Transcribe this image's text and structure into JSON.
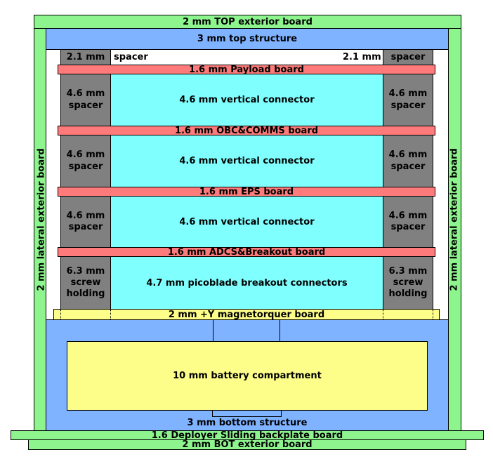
{
  "top_exterior": "2 mm TOP exterior board",
  "top_structure": "3 mm top structure",
  "lateral_left": "2 mm lateral exterior board",
  "lateral_right": "2 mm lateral exterior board",
  "spacer_top_left_mm": "2.1 mm",
  "spacer_top_left_word": "spacer",
  "spacer_top_right_mm": "2.1 mm",
  "spacer_top_right_word": "spacer",
  "payload_board": "1.6 mm Payload board",
  "obc_board": "1.6 mm OBC&COMMS board",
  "eps_board": "1.6 mm EPS board",
  "adcs_board": "1.6 mm ADCS&Breakout board",
  "connector_1": "4.6 mm vertical connector",
  "connector_2": "4.6 mm vertical connector",
  "connector_3": "4.6 mm vertical connector",
  "picoblade": "4.7 mm picoblade breakout connectors",
  "spacer_46_l1": "4.6 mm",
  "spacer_46_l1b": "spacer",
  "spacer_46_r1": "4.6 mm",
  "spacer_46_r1b": "spacer",
  "spacer_46_l2": "4.6 mm",
  "spacer_46_l2b": "spacer",
  "spacer_46_r2": "4.6 mm",
  "spacer_46_r2b": "spacer",
  "spacer_46_l3": "4.6 mm",
  "spacer_46_l3b": "spacer",
  "spacer_46_r3": "4.6 mm",
  "spacer_46_r3b": "spacer",
  "screw_l_1": "6.3 mm",
  "screw_l_2": "screw",
  "screw_l_3": "holding",
  "screw_r_1": "6.3 mm",
  "screw_r_2": "screw",
  "screw_r_3": "holding",
  "magnetorquer": "2 mm +Y magnetorquer board",
  "battery": "10 mm battery compartment",
  "bottom_structure": "3 mm bottom structure",
  "deployer": "1.6 Deployer Sliding backplate board",
  "bot_exterior": "2 mm BOT exterior board",
  "colors": {
    "exterior": "#8ef58e",
    "structure": "#7fb2ff",
    "connector": "#80ffff",
    "spacer": "#808080",
    "pcb": "#ff7b7b",
    "magnetorquer_battery": "#fdfd8a"
  }
}
